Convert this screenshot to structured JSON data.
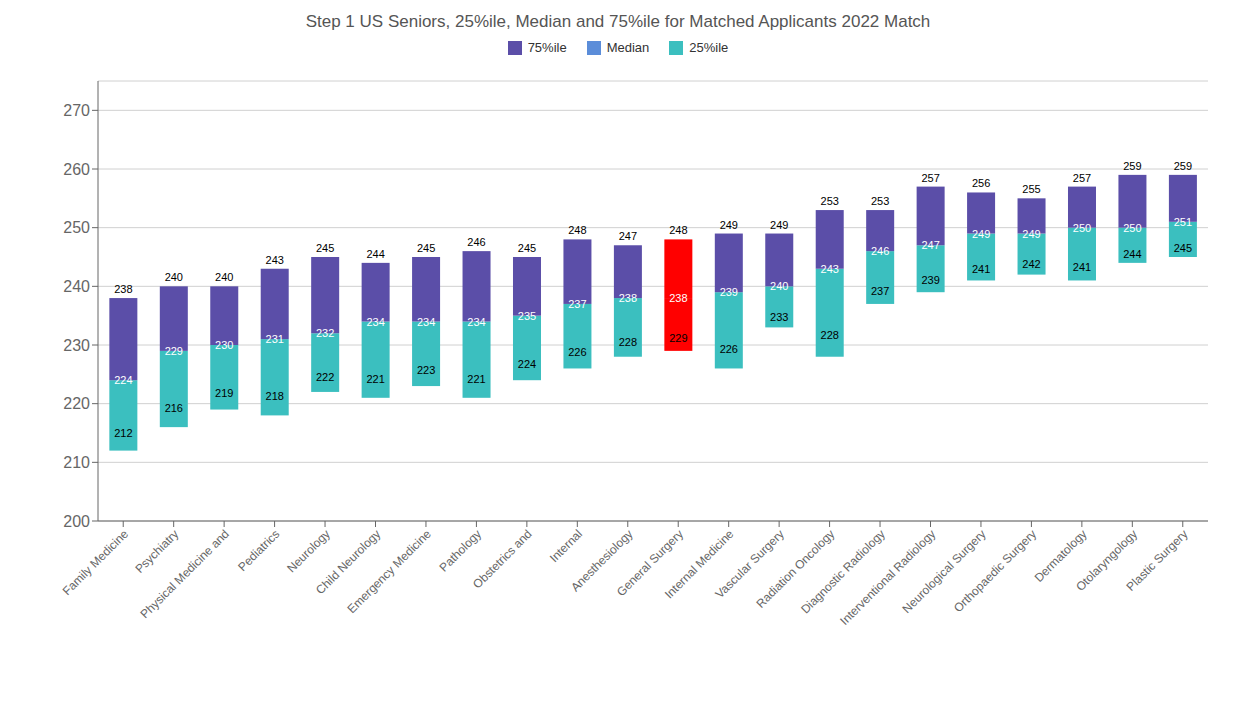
{
  "chart_data": {
    "type": "bar",
    "title": "Step 1 US Seniors, 25%ile, Median and 75%ile for Matched Applicants 2022 Match",
    "categories": [
      "Family Medicine",
      "Psychiatry",
      "Physical Medicine and",
      "Pediatrics",
      "Neurology",
      "Child Neurology",
      "Emergency Medicine",
      "Pathology",
      "Obstetrics and",
      "Internal",
      "Anesthesiology",
      "General Surgery",
      "Internal Medicine",
      "Vascular Surgery",
      "Radiation Oncology",
      "Diagnostic Radiology",
      "Interventional Radiology",
      "Neurological Surgery",
      "Orthopaedic Surgery",
      "Dermatology",
      "Otolaryngology",
      "Plastic Surgery"
    ],
    "series": [
      {
        "name": "75%ile",
        "color": "#5b4ea8",
        "colors": [
          "#5b4ea8",
          "#5b4ea8",
          "#5b4ea8",
          "#5b4ea8",
          "#5b4ea8",
          "#5b4ea8",
          "#5b4ea8",
          "#5b4ea8",
          "#5b4ea8",
          "#5b4ea8",
          "#5b4ea8",
          "#ff0000",
          "#5b4ea8",
          "#5b4ea8",
          "#5b4ea8",
          "#5b4ea8",
          "#5b4ea8",
          "#5b4ea8",
          "#5b4ea8",
          "#5b4ea8",
          "#5b4ea8",
          "#5b4ea8"
        ],
        "values": [
          238,
          240,
          240,
          243,
          245,
          244,
          245,
          246,
          245,
          248,
          247,
          248,
          249,
          249,
          253,
          253,
          257,
          256,
          255,
          257,
          259,
          259
        ]
      },
      {
        "name": "Median",
        "color": "#5b8dd9",
        "values": [
          224,
          229,
          230,
          231,
          232,
          234,
          234,
          234,
          235,
          237,
          238,
          238,
          239,
          240,
          243,
          246,
          247,
          249,
          249,
          250,
          250,
          251
        ]
      },
      {
        "name": "25%ile",
        "color": "#3bbfbf",
        "colors": [
          "#3bbfbf",
          "#3bbfbf",
          "#3bbfbf",
          "#3bbfbf",
          "#3bbfbf",
          "#3bbfbf",
          "#3bbfbf",
          "#3bbfbf",
          "#3bbfbf",
          "#3bbfbf",
          "#3bbfbf",
          "#ff0000",
          "#3bbfbf",
          "#3bbfbf",
          "#3bbfbf",
          "#3bbfbf",
          "#3bbfbf",
          "#3bbfbf",
          "#3bbfbf",
          "#3bbfbf",
          "#3bbfbf",
          "#3bbfbf"
        ],
        "values": [
          212,
          216,
          219,
          218,
          222,
          221,
          223,
          221,
          224,
          226,
          228,
          229,
          226,
          233,
          228,
          237,
          239,
          241,
          242,
          241,
          244,
          245
        ]
      }
    ],
    "ylim": [
      200,
      275
    ],
    "yticks": [
      200,
      210,
      220,
      230,
      240,
      250,
      260,
      270
    ],
    "grid": true,
    "data_labels": true,
    "legend": "top"
  }
}
